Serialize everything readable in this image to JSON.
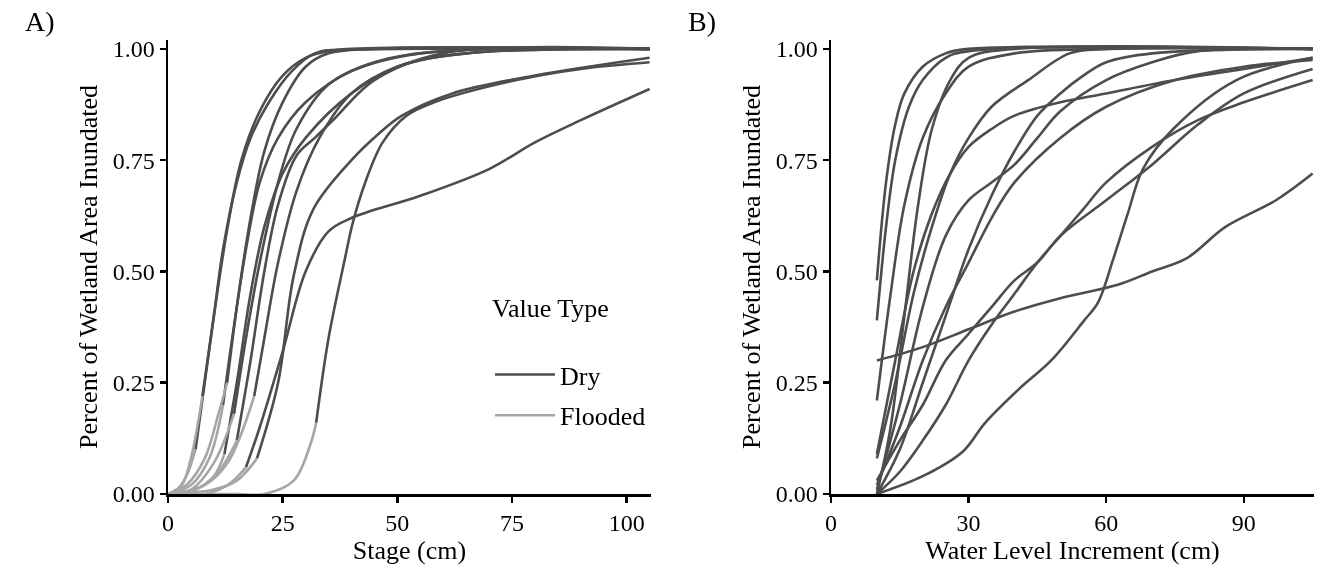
{
  "chart_data": [
    {
      "type": "line",
      "annotations": [
        "A)"
      ],
      "xlabel": "Stage (cm)",
      "ylabel": "Percent of Wetland Area Inundated",
      "xlim": [
        0,
        105.3
      ],
      "xticks": [
        0,
        25,
        50,
        75,
        100
      ],
      "ylim": [
        0,
        1.02
      ],
      "yticks": [
        {
          "value": 0,
          "label": "0.00"
        },
        {
          "value": 0.25,
          "label": "0.25"
        },
        {
          "value": 0.5,
          "label": "0.50"
        },
        {
          "value": 0.75,
          "label": "0.75"
        },
        {
          "value": 1,
          "label": "1.00"
        }
      ],
      "legend": "bottom right",
      "legend_title": "Value Type",
      "series": [
        {
          "name": "Dry",
          "color": "#4d4d4d",
          "x": [
            7.5,
            10,
            13,
            16,
            20,
            25,
            30,
            35,
            50,
            105,
            null,
            12.9,
            15,
            18,
            21,
            25,
            30,
            35,
            45,
            105,
            null,
            14.4,
            17,
            20,
            24,
            28,
            35,
            45,
            60,
            105,
            null,
            12.3,
            15,
            18,
            21,
            25,
            30,
            40,
            50,
            65,
            105,
            null,
            18.8,
            21,
            24,
            28,
            33,
            40,
            50,
            65,
            105,
            null,
            19.4,
            24,
            27.4,
            31.7,
            40,
            46,
            51,
            62,
            80,
            105,
            null,
            17,
            20,
            25,
            30,
            35,
            40,
            55,
            70,
            80,
            90,
            105,
            null,
            32.3,
            35,
            38.6,
            40.3,
            43,
            46.8,
            52,
            58,
            76,
            90,
            105,
            null,
            6,
            8,
            10,
            12,
            15,
            18,
            22,
            27,
            32,
            40,
            105,
            null,
            12,
            14,
            17,
            20,
            24,
            30,
            40,
            55,
            105,
            null,
            15,
            18,
            21,
            24,
            28,
            32,
            36,
            45,
            60,
            105
          ],
          "values": [
            0.22,
            0.4,
            0.6,
            0.75,
            0.86,
            0.94,
            0.98,
            0.995,
            1,
            1,
            null,
            0.25,
            0.42,
            0.62,
            0.77,
            0.88,
            0.96,
            0.99,
            1,
            1,
            null,
            0.18,
            0.35,
            0.52,
            0.7,
            0.82,
            0.92,
            0.97,
            0.995,
            1,
            null,
            0.09,
            0.25,
            0.45,
            0.6,
            0.72,
            0.8,
            0.9,
            0.96,
            0.99,
            1,
            null,
            0.22,
            0.35,
            0.52,
            0.68,
            0.8,
            0.9,
            0.96,
            0.99,
            1,
            null,
            0.08,
            0.25,
            0.49,
            0.64,
            0.75,
            0.81,
            0.85,
            0.9,
            0.94,
            0.98,
            null,
            0.06,
            0.15,
            0.32,
            0.5,
            0.59,
            0.62,
            0.67,
            0.73,
            0.79,
            0.84,
            0.91,
            null,
            0.16,
            0.35,
            0.53,
            0.61,
            0.7,
            0.79,
            0.85,
            0.88,
            0.93,
            0.955,
            0.97,
            null,
            0.1,
            0.25,
            0.4,
            0.55,
            0.7,
            0.8,
            0.88,
            0.95,
            0.99,
            1,
            1,
            null,
            0.2,
            0.35,
            0.55,
            0.7,
            0.8,
            0.88,
            0.95,
            0.99,
            1,
            null,
            0.12,
            0.3,
            0.5,
            0.65,
            0.76,
            0.8,
            0.84,
            0.93,
            0.99,
            1
          ]
        },
        {
          "name": "Flooded",
          "color": "#a6a6a6",
          "x": [
            0,
            3,
            5,
            7.5,
            null,
            0,
            4,
            8,
            11,
            12.9,
            null,
            0,
            5,
            10,
            14.4,
            null,
            0,
            6,
            10,
            12.3,
            null,
            0,
            8,
            13,
            18.8,
            null,
            0,
            10,
            15,
            19.4,
            null,
            0,
            8,
            13,
            17,
            null,
            0,
            15,
            21,
            27.4,
            31,
            32.3,
            null,
            0,
            2,
            4,
            6,
            null,
            0,
            5,
            9,
            12,
            null,
            0,
            6,
            11,
            15
          ],
          "values": [
            0,
            0.02,
            0.08,
            0.22,
            null,
            0,
            0.02,
            0.08,
            0.18,
            0.25,
            null,
            0,
            0.01,
            0.07,
            0.18,
            null,
            0,
            0.01,
            0.04,
            0.09,
            null,
            0,
            0.02,
            0.07,
            0.22,
            null,
            0,
            0.01,
            0.03,
            0.08,
            null,
            0,
            0,
            0.02,
            0.06,
            null,
            0,
            0,
            0,
            0.03,
            0.11,
            0.16,
            null,
            0,
            0.01,
            0.04,
            0.1,
            null,
            0,
            0.02,
            0.08,
            0.2,
            null,
            0,
            0.01,
            0.05,
            0.12
          ]
        }
      ]
    },
    {
      "type": "line",
      "annotations": [
        "B)"
      ],
      "xlabel": "Water Level Increment (cm)",
      "ylabel": "Percent of Wetland Area Inundated",
      "xlim": [
        0,
        105.3
      ],
      "xticks": [
        0,
        30,
        60,
        90
      ],
      "ylim": [
        0,
        1.02
      ],
      "yticks": [
        {
          "value": 0,
          "label": "0.00"
        },
        {
          "value": 0.25,
          "label": "0.25"
        },
        {
          "value": 0.5,
          "label": "0.50"
        },
        {
          "value": 0.75,
          "label": "0.75"
        },
        {
          "value": 1,
          "label": "1.00"
        }
      ],
      "series": [
        {
          "color": "#4d4d4d",
          "x": [
            10,
            12,
            14,
            16,
            20,
            25,
            30,
            105,
            null,
            10,
            12,
            14,
            17,
            20,
            25,
            30,
            105,
            null,
            10,
            13,
            16,
            20,
            25,
            30,
            40,
            60,
            105,
            null,
            10,
            14,
            18,
            22,
            26,
            30,
            35,
            43,
            52,
            60,
            105,
            null,
            10,
            15,
            20,
            25,
            30,
            35,
            40,
            45,
            50,
            60,
            70,
            80,
            90,
            105,
            null,
            10,
            20,
            28.7,
            33.6,
            40.9,
            48,
            55.2,
            58.2,
            61.6,
            64.7,
            68,
            74.6,
            88.4,
            105,
            null,
            10,
            20,
            30,
            40,
            50,
            62.5,
            70,
            77.6,
            86,
            97,
            105,
            null,
            10,
            15,
            20,
            25,
            30,
            35,
            40,
            50,
            60,
            75,
            90,
            105,
            null,
            10,
            15,
            20,
            25,
            30,
            35,
            40,
            45,
            50,
            60,
            70,
            80,
            105,
            null,
            10,
            14,
            18,
            22,
            26,
            30,
            35,
            40,
            50,
            60,
            75,
            90,
            105,
            null,
            10,
            15,
            20,
            25,
            30,
            35,
            40,
            45,
            50,
            55,
            60,
            70,
            105,
            null,
            10,
            15,
            20,
            25,
            30,
            35,
            40,
            45,
            50,
            55,
            60,
            70,
            80,
            90,
            105,
            null,
            10,
            13,
            16,
            19,
            22,
            26,
            30,
            40,
            105
          ],
          "values": [
            0.48,
            0.7,
            0.83,
            0.9,
            0.96,
            0.99,
            1,
            1,
            null,
            0.39,
            0.6,
            0.75,
            0.87,
            0.93,
            0.98,
            0.995,
            1,
            null,
            0.21,
            0.45,
            0.65,
            0.8,
            0.9,
            0.96,
            0.99,
            1,
            1,
            null,
            0.08,
            0.25,
            0.45,
            0.6,
            0.72,
            0.8,
            0.87,
            0.93,
            0.99,
            1,
            1,
            null,
            0.03,
            0.12,
            0.2,
            0.3,
            0.36,
            0.42,
            0.48,
            0.52,
            0.58,
            0.66,
            0.74,
            0.83,
            0.9,
            0.955,
            null,
            0,
            0.04,
            0.095,
            0.16,
            0.235,
            0.3,
            0.39,
            0.43,
            0.53,
            0.63,
            0.73,
            0.82,
            0.93,
            0.98,
            null,
            0.3,
            0.33,
            0.37,
            0.41,
            0.44,
            0.47,
            0.5,
            0.53,
            0.6,
            0.66,
            0.72,
            null,
            0.02,
            0.15,
            0.3,
            0.42,
            0.52,
            0.62,
            0.7,
            0.8,
            0.87,
            0.93,
            0.96,
            0.975,
            null,
            0.01,
            0.2,
            0.42,
            0.58,
            0.66,
            0.7,
            0.74,
            0.8,
            0.86,
            0.93,
            0.97,
            0.995,
            1,
            null,
            0.09,
            0.3,
            0.5,
            0.63,
            0.72,
            0.78,
            0.82,
            0.85,
            0.88,
            0.9,
            0.93,
            0.955,
            0.98,
            null,
            0,
            0.1,
            0.25,
            0.4,
            0.55,
            0.67,
            0.77,
            0.85,
            0.9,
            0.94,
            0.97,
            0.99,
            1,
            null,
            0,
            0.05,
            0.12,
            0.2,
            0.3,
            0.38,
            0.45,
            0.52,
            0.58,
            0.64,
            0.7,
            0.78,
            0.84,
            0.88,
            0.93,
            null,
            0,
            0.15,
            0.4,
            0.65,
            0.82,
            0.93,
            0.98,
            1,
            1
          ]
        }
      ]
    }
  ]
}
